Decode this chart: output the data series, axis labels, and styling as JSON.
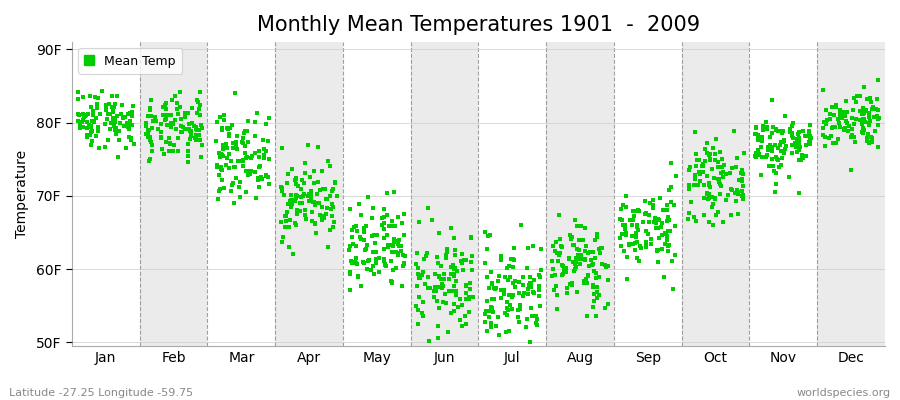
{
  "title": "Monthly Mean Temperatures 1901  -  2009",
  "ylabel": "Temperature",
  "ytick_labels": [
    "50F",
    "60F",
    "70F",
    "80F",
    "90F"
  ],
  "ytick_values": [
    50,
    60,
    70,
    80,
    90
  ],
  "ylim": [
    49.5,
    91
  ],
  "months": [
    "Jan",
    "Feb",
    "Mar",
    "Apr",
    "May",
    "Jun",
    "Jul",
    "Aug",
    "Sep",
    "Oct",
    "Nov",
    "Dec"
  ],
  "dot_color": "#00cc00",
  "bg_color": "#ffffff",
  "plot_bg_white": "#ffffff",
  "plot_bg_gray": "#ebebeb",
  "legend_label": "Mean Temp",
  "footer_left": "Latitude -27.25 Longitude -59.75",
  "footer_right": "worldspecies.org",
  "title_fontsize": 15,
  "label_fontsize": 10,
  "monthly_means": [
    80.5,
    79.0,
    75.5,
    69.5,
    62.5,
    58.0,
    57.0,
    60.5,
    65.5,
    72.0,
    77.0,
    80.5
  ],
  "monthly_stds": [
    2.0,
    2.2,
    2.8,
    2.8,
    3.2,
    3.5,
    3.5,
    3.0,
    2.8,
    2.5,
    2.2,
    2.0
  ],
  "n_years": 109,
  "seed": 42
}
